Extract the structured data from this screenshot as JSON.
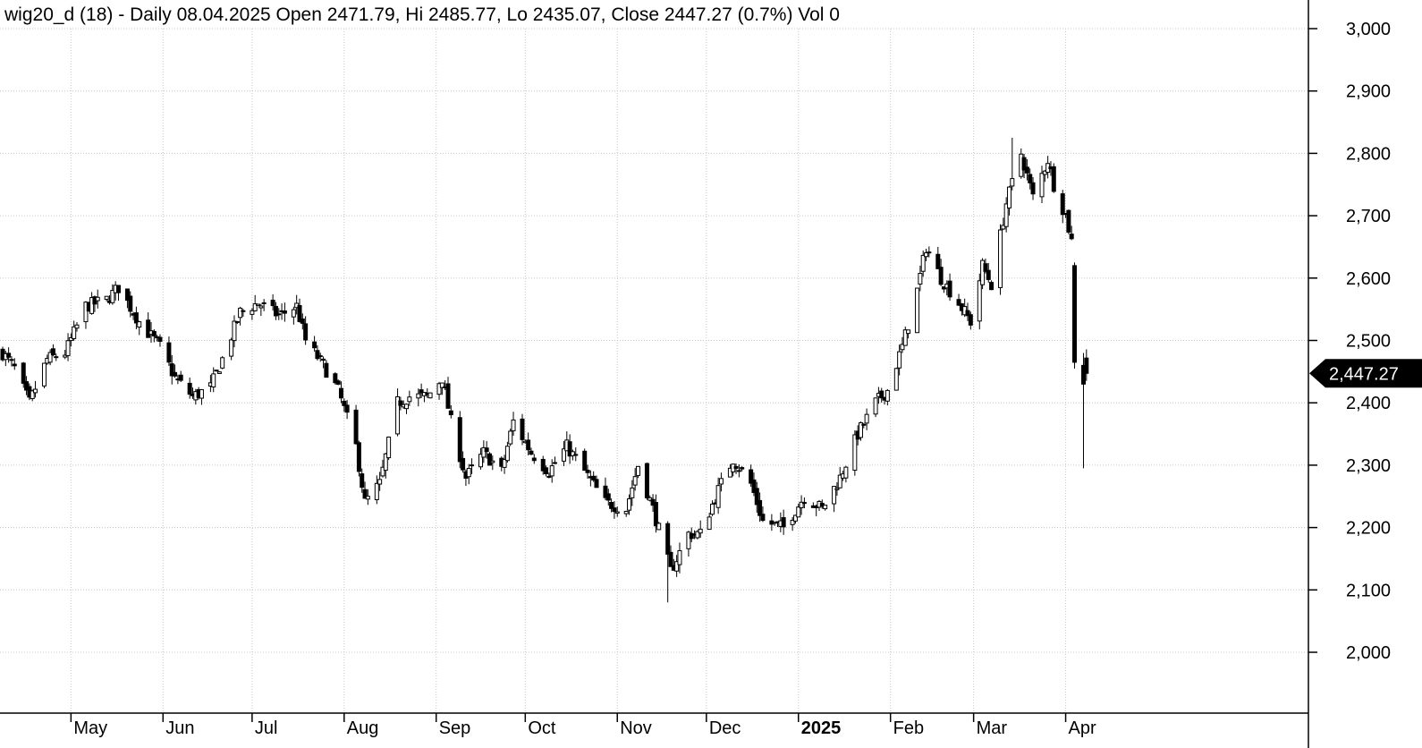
{
  "chart_data": {
    "type": "candlestick",
    "title": "wig20_d (18) - Daily 08.04.2025 Open 2471.79, Hi 2485.77, Lo 2435.07, Close 2447.27 (0.7%) Vol 0",
    "y_ticks": [
      "3,000",
      "2,900",
      "2,800",
      "2,700",
      "2,600",
      "2,500",
      "2,400",
      "2,300",
      "2,200",
      "2,100",
      "2,000"
    ],
    "ylim": [
      1900,
      3030
    ],
    "x_range": [
      "2024-04-08",
      "2025-04-08"
    ],
    "x_ticks": [
      {
        "label": "May",
        "date": "2024-05-01",
        "bold": false
      },
      {
        "label": "Jun",
        "date": "2024-06-01",
        "bold": false
      },
      {
        "label": "Jul",
        "date": "2024-07-01",
        "bold": false
      },
      {
        "label": "Aug",
        "date": "2024-08-01",
        "bold": false
      },
      {
        "label": "Sep",
        "date": "2024-09-01",
        "bold": false
      },
      {
        "label": "Oct",
        "date": "2024-10-01",
        "bold": false
      },
      {
        "label": "Nov",
        "date": "2024-11-01",
        "bold": false
      },
      {
        "label": "Dec",
        "date": "2024-12-01",
        "bold": false
      },
      {
        "label": "2025",
        "date": "2025-01-01",
        "bold": true
      },
      {
        "label": "Feb",
        "date": "2025-02-01",
        "bold": false
      },
      {
        "label": "Mar",
        "date": "2025-03-01",
        "bold": false
      },
      {
        "label": "Apr",
        "date": "2025-04-01",
        "bold": false
      }
    ],
    "last_price_label": "2,447.27",
    "last_price": 2447.27,
    "grid": true,
    "close_path": [
      [
        "2024-04-08",
        2480
      ],
      [
        "2024-04-12",
        2455
      ],
      [
        "2024-04-17",
        2400
      ],
      [
        "2024-04-23",
        2470
      ],
      [
        "2024-04-29",
        2480
      ],
      [
        "2024-05-06",
        2555
      ],
      [
        "2024-05-13",
        2565
      ],
      [
        "2024-05-17",
        2585
      ],
      [
        "2024-05-24",
        2530
      ],
      [
        "2024-05-31",
        2490
      ],
      [
        "2024-06-05",
        2440
      ],
      [
        "2024-06-11",
        2410
      ],
      [
        "2024-06-17",
        2425
      ],
      [
        "2024-06-21",
        2470
      ],
      [
        "2024-06-27",
        2545
      ],
      [
        "2024-07-03",
        2560
      ],
      [
        "2024-07-10",
        2540
      ],
      [
        "2024-07-16",
        2555
      ],
      [
        "2024-07-19",
        2500
      ],
      [
        "2024-07-25",
        2460
      ],
      [
        "2024-07-30",
        2420
      ],
      [
        "2024-08-05",
        2330
      ],
      [
        "2024-08-08",
        2240
      ],
      [
        "2024-08-13",
        2270
      ],
      [
        "2024-08-19",
        2400
      ],
      [
        "2024-08-23",
        2410
      ],
      [
        "2024-08-29",
        2410
      ],
      [
        "2024-09-03",
        2440
      ],
      [
        "2024-09-06",
        2370
      ],
      [
        "2024-09-11",
        2280
      ],
      [
        "2024-09-17",
        2320
      ],
      [
        "2024-09-23",
        2290
      ],
      [
        "2024-09-27",
        2370
      ],
      [
        "2024-10-03",
        2320
      ],
      [
        "2024-10-09",
        2290
      ],
      [
        "2024-10-15",
        2330
      ],
      [
        "2024-10-21",
        2290
      ],
      [
        "2024-10-28",
        2240
      ],
      [
        "2024-11-04",
        2230
      ],
      [
        "2024-11-08",
        2300
      ],
      [
        "2024-11-13",
        2230
      ],
      [
        "2024-11-19",
        2130
      ],
      [
        "2024-11-25",
        2190
      ],
      [
        "2024-11-29",
        2190
      ],
      [
        "2024-12-05",
        2260
      ],
      [
        "2024-12-10",
        2310
      ],
      [
        "2024-12-16",
        2270
      ],
      [
        "2024-12-20",
        2210
      ],
      [
        "2024-12-27",
        2200
      ],
      [
        "2025-01-03",
        2250
      ],
      [
        "2025-01-09",
        2230
      ],
      [
        "2025-01-15",
        2280
      ],
      [
        "2025-01-21",
        2350
      ],
      [
        "2025-01-27",
        2400
      ],
      [
        "2025-01-31",
        2420
      ],
      [
        "2025-02-05",
        2490
      ],
      [
        "2025-02-10",
        2580
      ],
      [
        "2025-02-13",
        2650
      ],
      [
        "2025-02-18",
        2600
      ],
      [
        "2025-02-24",
        2560
      ],
      [
        "2025-02-28",
        2530
      ],
      [
        "2025-03-04",
        2620
      ],
      [
        "2025-03-07",
        2590
      ],
      [
        "2025-03-12",
        2720
      ],
      [
        "2025-03-17",
        2800
      ],
      [
        "2025-03-21",
        2730
      ],
      [
        "2025-03-26",
        2790
      ],
      [
        "2025-03-28",
        2750
      ],
      [
        "2025-04-01",
        2700
      ],
      [
        "2025-04-03",
        2660
      ],
      [
        "2025-04-04",
        2480
      ],
      [
        "2025-04-07",
        2430
      ],
      [
        "2025-04-08",
        2447.27
      ]
    ]
  }
}
